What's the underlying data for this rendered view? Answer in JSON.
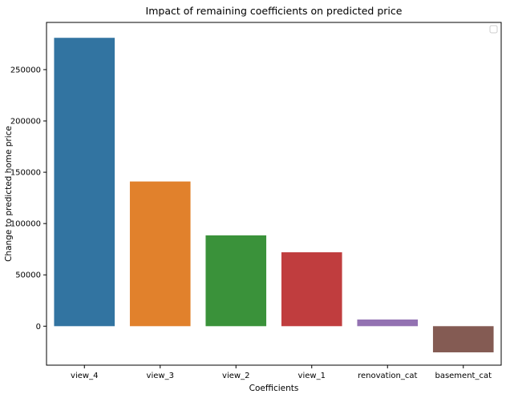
{
  "chart_data": {
    "type": "bar",
    "title": "Impact of remaining coefficients on predicted price",
    "xlabel": "Coefficients",
    "ylabel": "Change to predicted home price",
    "categories": [
      "view_4",
      "view_3",
      "view_2",
      "view_1",
      "renovation_cat",
      "basement_cat"
    ],
    "values": [
      281000,
      141000,
      88500,
      72000,
      6500,
      -25500
    ],
    "colors": [
      "#3274a1",
      "#e1812c",
      "#3a923a",
      "#c03d3e",
      "#9372b2",
      "#845b53"
    ],
    "ylim": [
      -38000,
      296000
    ],
    "yticks": [
      0,
      50000,
      100000,
      150000,
      200000,
      250000
    ],
    "ytick_labels": [
      "0",
      "50000",
      "100000",
      "150000",
      "200000",
      "250000"
    ],
    "grid": false,
    "legend": {
      "placement": "top-right",
      "entries": []
    }
  }
}
